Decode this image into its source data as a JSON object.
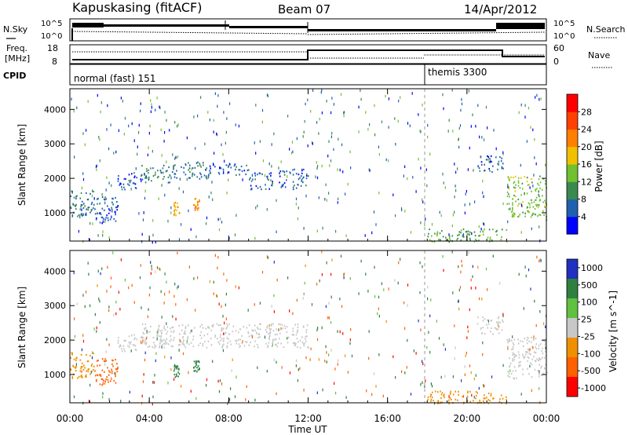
{
  "header": {
    "radar": "Kapuskasing (fitACF)",
    "beam": "Beam 07",
    "date": "14/Apr/2012"
  },
  "noise_panel": {
    "left_label": "N.Sky",
    "right_label": "N.Search",
    "left_ticks": [
      "10^5",
      "10^0"
    ],
    "right_ticks": [
      "10^5",
      "10^0"
    ]
  },
  "freq_panel": {
    "left_label_1": "Freq.",
    "left_label_2": "[MHz]",
    "left_ticks": [
      "18",
      "8"
    ],
    "right_label": "Nave",
    "right_ticks": [
      "60",
      "0"
    ]
  },
  "cpid_panel": {
    "label": "CPID",
    "programs": [
      {
        "name": "normal (fast) 151",
        "start_hour": 0
      },
      {
        "name": "themis 3300",
        "start_hour": 18
      }
    ]
  },
  "colors": {
    "power_scale": [
      "#0000ff",
      "#2060b0",
      "#3a8a50",
      "#70c030",
      "#f0c000",
      "#ff8000",
      "#ff4000",
      "#ff0000"
    ],
    "velocity_scale": [
      "#2030c0",
      "#2f8040",
      "#60c040",
      "#c8c8c8",
      "#f09000",
      "#ff6000",
      "#ff0000"
    ]
  },
  "chart_data": [
    {
      "type": "heatmap",
      "name": "power",
      "ylabel": "Slant Range [km]",
      "yticks": [
        1000,
        2000,
        3000,
        4000
      ],
      "ylim": [
        180,
        4600
      ],
      "xlim": [
        0,
        24
      ],
      "colorbar_label": "Power [dB]",
      "colorbar_ticks": [
        4,
        8,
        12,
        16,
        20,
        24,
        28
      ],
      "colorbar_range": [
        0,
        32
      ],
      "regions": [
        {
          "t0": 0.0,
          "t1": 1.2,
          "r0": 900,
          "r1": 1700,
          "level": 8
        },
        {
          "t0": 1.2,
          "t1": 2.4,
          "r0": 700,
          "r1": 1500,
          "level": 6
        },
        {
          "t0": 2.4,
          "t1": 3.6,
          "r0": 1700,
          "r1": 2200,
          "level": 6
        },
        {
          "t0": 3.6,
          "t1": 5.0,
          "r0": 1900,
          "r1": 2400,
          "level": 9
        },
        {
          "t0": 5.0,
          "t1": 7.0,
          "r0": 2000,
          "r1": 2500,
          "level": 7
        },
        {
          "t0": 7.0,
          "t1": 9.0,
          "r0": 2100,
          "r1": 2450,
          "level": 6
        },
        {
          "t0": 9.0,
          "t1": 10.2,
          "r0": 1700,
          "r1": 2200,
          "level": 6
        },
        {
          "t0": 10.5,
          "t1": 12.0,
          "r0": 1700,
          "r1": 2300,
          "level": 6
        },
        {
          "t0": 5.2,
          "t1": 5.5,
          "r0": 950,
          "r1": 1350,
          "level": 20
        },
        {
          "t0": 6.2,
          "t1": 6.5,
          "r0": 1100,
          "r1": 1450,
          "level": 22
        },
        {
          "t0": 18.0,
          "t1": 22.0,
          "r0": 180,
          "r1": 550,
          "level": 12
        },
        {
          "t0": 20.5,
          "t1": 21.8,
          "r0": 2200,
          "r1": 2700,
          "level": 6
        },
        {
          "t0": 22.0,
          "t1": 24.0,
          "r0": 900,
          "r1": 2100,
          "level": 14
        }
      ]
    },
    {
      "type": "heatmap",
      "name": "velocity",
      "ylabel": "Slant Range [km]",
      "yticks": [
        1000,
        2000,
        3000,
        4000
      ],
      "ylim": [
        180,
        4600
      ],
      "xlim": [
        0,
        24
      ],
      "xlabel": "Time UT",
      "xticks": [
        "00:00",
        "04:00",
        "08:00",
        "12:00",
        "16:00",
        "20:00",
        "00:00"
      ],
      "colorbar_label": "Velocity [m s^-1]",
      "colorbar_ticks": [
        "1000",
        "500",
        "100",
        "25",
        "-25",
        "-100",
        "-500",
        "-1000"
      ],
      "regions": [
        {
          "t0": 0.0,
          "t1": 1.2,
          "r0": 900,
          "r1": 1700,
          "v": -100
        },
        {
          "t0": 1.2,
          "t1": 2.4,
          "r0": 700,
          "r1": 1500,
          "v": -200
        },
        {
          "t0": 2.4,
          "t1": 3.6,
          "r0": 1700,
          "r1": 2200,
          "v": 0
        },
        {
          "t0": 3.6,
          "t1": 12.0,
          "r0": 1800,
          "r1": 2500,
          "v": 0
        },
        {
          "t0": 5.2,
          "t1": 5.5,
          "r0": 950,
          "r1": 1350,
          "v": 300
        },
        {
          "t0": 6.2,
          "t1": 6.5,
          "r0": 1100,
          "r1": 1450,
          "v": 300
        },
        {
          "t0": 18.0,
          "t1": 22.0,
          "r0": 180,
          "r1": 550,
          "v": -100
        },
        {
          "t0": 20.5,
          "t1": 21.8,
          "r0": 2200,
          "r1": 2700,
          "v": 0
        },
        {
          "t0": 22.0,
          "t1": 24.0,
          "r0": 900,
          "r1": 2100,
          "v": 0
        }
      ]
    }
  ]
}
